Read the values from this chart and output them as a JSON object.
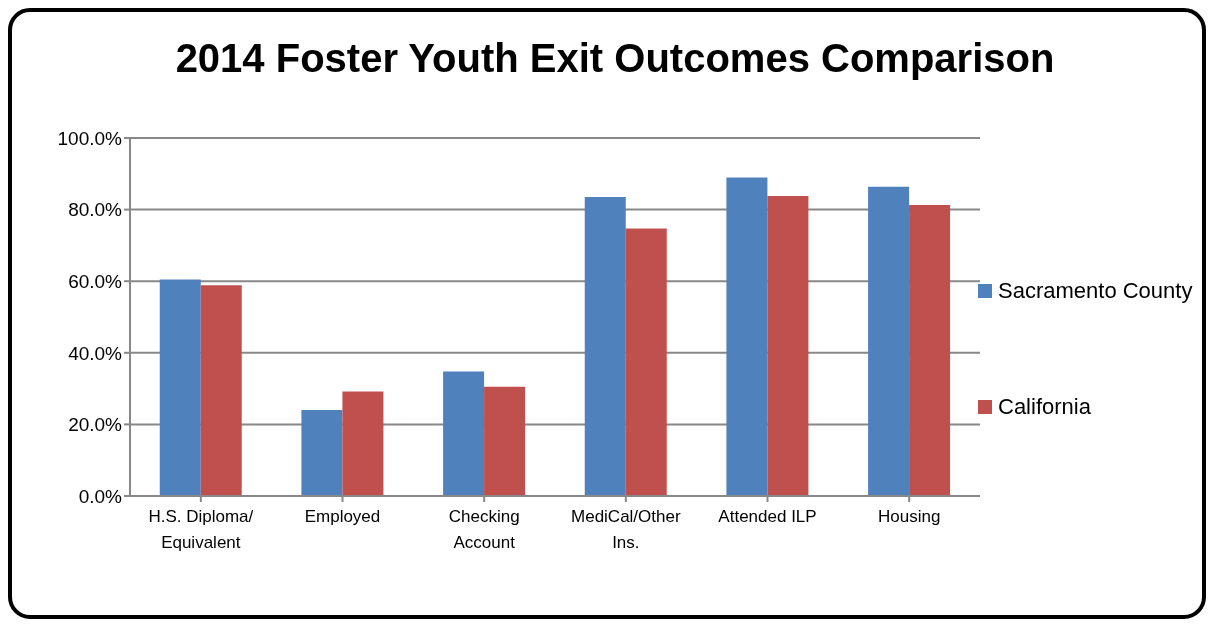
{
  "chart_data": {
    "type": "bar",
    "title": "2014 Foster Youth Exit Outcomes Comparison",
    "categories": [
      "H.S. Diploma/ Equivalent",
      "Employed",
      "Checking Account",
      "MediCal/Other Ins.",
      "Attended ILP",
      "Housing"
    ],
    "series": [
      {
        "name": "Sacramento County",
        "color": "#4f81bd",
        "values": [
          60.5,
          24.0,
          34.8,
          83.5,
          89.0,
          86.4
        ]
      },
      {
        "name": "California",
        "color": "#c0504d",
        "values": [
          58.9,
          29.2,
          30.5,
          74.7,
          83.8,
          81.3
        ]
      }
    ],
    "ylim": [
      0,
      100
    ],
    "yticks": [
      {
        "value": 0,
        "label": "0.0%"
      },
      {
        "value": 20,
        "label": "20.0%"
      },
      {
        "value": 40,
        "label": "40.0%"
      },
      {
        "value": 60,
        "label": "60.0%"
      },
      {
        "value": 80,
        "label": "80.0%"
      },
      {
        "value": 100,
        "label": "100.0%"
      }
    ],
    "grid": "y",
    "legend": "right"
  }
}
